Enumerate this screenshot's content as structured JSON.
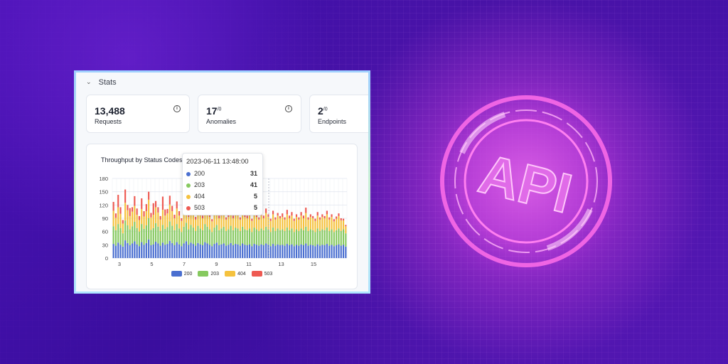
{
  "stats": {
    "header": "Stats",
    "cards": [
      {
        "value": "13,488",
        "sup": "",
        "label": "Requests"
      },
      {
        "value": "17",
        "sup": "/0",
        "label": "Anomalies"
      },
      {
        "value": "2",
        "sup": "/0",
        "label": "Endpoints"
      }
    ]
  },
  "tooltip": {
    "time": "2023-06-11 13:48:00",
    "rows": [
      {
        "name": "200",
        "value": "31",
        "color": "#4a6fd0"
      },
      {
        "name": "203",
        "value": "41",
        "color": "#86c95f"
      },
      {
        "name": "404",
        "value": "5",
        "color": "#f5c23e"
      },
      {
        "name": "503",
        "value": "5",
        "color": "#ee5a52"
      }
    ]
  },
  "emblem": {
    "text": "API"
  },
  "chart_data": {
    "type": "bar",
    "stacked": true,
    "title": "Throughput by Status Codes",
    "ylim": [
      0,
      180
    ],
    "yticks": [
      0,
      30,
      60,
      90,
      120,
      150,
      180
    ],
    "xticks": [
      "3",
      "5",
      "7",
      "9",
      "11",
      "13",
      "15"
    ],
    "grid": true,
    "legend_position": "bottom",
    "colors": [
      "#4a6fd0",
      "#86c95f",
      "#f5c23e",
      "#ee5a52"
    ],
    "series": [
      {
        "name": "200",
        "values": [
          32,
          28,
          35,
          30,
          26,
          40,
          34,
          29,
          33,
          38,
          31,
          27,
          36,
          30,
          34,
          42,
          29,
          31,
          37,
          33,
          28,
          35,
          30,
          32,
          39,
          34,
          29,
          36,
          31,
          27,
          33,
          38,
          30,
          35,
          32,
          28,
          34,
          31,
          29,
          36,
          33,
          30,
          27,
          32,
          35,
          29,
          31,
          33,
          28,
          30,
          34,
          29,
          32,
          31,
          28,
          33,
          30,
          29,
          31,
          27,
          32,
          30,
          28,
          31,
          29,
          33,
          30,
          27,
          32,
          28,
          31,
          29,
          30,
          28,
          32,
          29,
          31,
          27,
          30,
          28,
          31,
          29,
          33,
          28,
          30,
          29,
          27,
          31,
          28,
          30,
          29,
          32,
          28,
          30,
          27,
          29,
          31,
          28,
          30,
          26
        ]
      },
      {
        "name": "203",
        "values": [
          40,
          35,
          42,
          38,
          30,
          45,
          40,
          36,
          39,
          44,
          37,
          33,
          41,
          36,
          40,
          48,
          35,
          37,
          42,
          38,
          33,
          40,
          36,
          38,
          44,
          39,
          34,
          41,
          36,
          32,
          38,
          42,
          35,
          40,
          37,
          33,
          39,
          36,
          34,
          41,
          38,
          35,
          32,
          37,
          40,
          34,
          36,
          38,
          33,
          35,
          39,
          34,
          37,
          36,
          33,
          38,
          35,
          34,
          36,
          32,
          37,
          35,
          33,
          36,
          34,
          38,
          35,
          32,
          37,
          33,
          36,
          34,
          35,
          33,
          37,
          34,
          36,
          32,
          35,
          33,
          36,
          34,
          38,
          33,
          35,
          34,
          32,
          36,
          33,
          35,
          34,
          37,
          33,
          35,
          32,
          34,
          36,
          33,
          35,
          30
        ]
      },
      {
        "name": "404",
        "values": [
          35,
          28,
          38,
          32,
          22,
          40,
          34,
          30,
          33,
          36,
          30,
          26,
          34,
          28,
          32,
          42,
          28,
          30,
          36,
          32,
          26,
          34,
          30,
          31,
          38,
          33,
          27,
          35,
          29,
          25,
          31,
          35,
          28,
          33,
          30,
          26,
          32,
          29,
          27,
          34,
          31,
          28,
          24,
          30,
          33,
          27,
          29,
          31,
          26,
          28,
          32,
          27,
          30,
          29,
          26,
          31,
          28,
          27,
          29,
          25,
          30,
          28,
          26,
          29,
          27,
          31,
          28,
          25,
          30,
          26,
          29,
          27,
          28,
          26,
          30,
          27,
          29,
          25,
          28,
          26,
          29,
          27,
          31,
          26,
          28,
          27,
          25,
          29,
          26,
          28,
          27,
          30,
          26,
          28,
          24,
          26,
          28,
          24,
          20,
          16
        ]
      },
      {
        "name": "503",
        "values": [
          20,
          10,
          28,
          15,
          8,
          30,
          12,
          18,
          10,
          22,
          14,
          9,
          24,
          12,
          16,
          18,
          10,
          26,
          14,
          12,
          8,
          30,
          14,
          10,
          20,
          12,
          8,
          16,
          10,
          6,
          12,
          18,
          8,
          14,
          12,
          6,
          10,
          8,
          6,
          12,
          10,
          8,
          5,
          8,
          10,
          6,
          8,
          10,
          5,
          6,
          10,
          6,
          8,
          8,
          5,
          10,
          6,
          6,
          8,
          5,
          8,
          6,
          5,
          8,
          6,
          10,
          6,
          5,
          8,
          5,
          6,
          5,
          8,
          5,
          10,
          6,
          8,
          5,
          6,
          5,
          8,
          6,
          12,
          5,
          6,
          5,
          5,
          8,
          5,
          6,
          5,
          8,
          5,
          6,
          5,
          5,
          6,
          5,
          4,
          3
        ]
      }
    ]
  }
}
